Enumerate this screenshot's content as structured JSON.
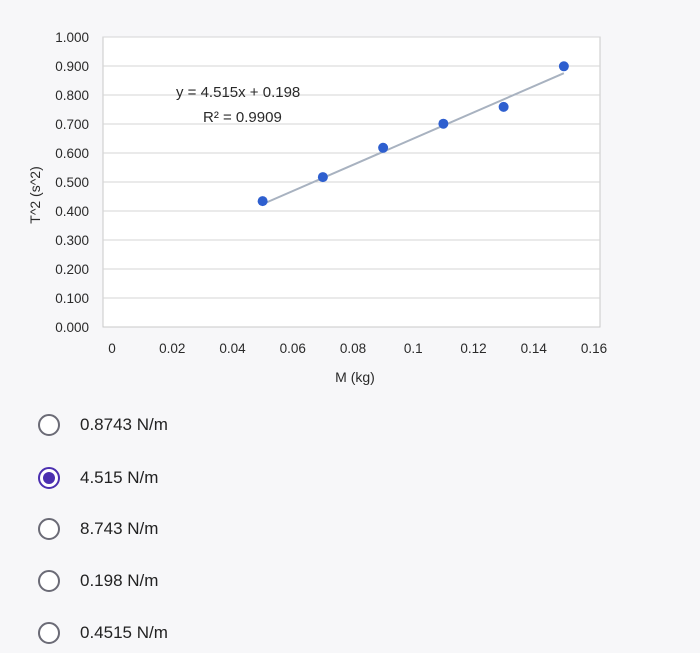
{
  "chart_data": {
    "type": "scatter",
    "xlabel": "M (kg)",
    "ylabel": "T^2 (s^2)",
    "xlim": [
      0,
      0.16
    ],
    "ylim": [
      0,
      1.0
    ],
    "x_ticks": [
      "0",
      "0.02",
      "0.04",
      "0.06",
      "0.08",
      "0.1",
      "0.12",
      "0.14",
      "0.16"
    ],
    "y_ticks": [
      "0.000",
      "0.100",
      "0.200",
      "0.300",
      "0.400",
      "0.500",
      "0.600",
      "0.700",
      "0.800",
      "0.900",
      "1.000"
    ],
    "grid": true,
    "series": [
      {
        "x": [
          0.05,
          0.07,
          0.09,
          0.11,
          0.13,
          0.15
        ],
        "y": [
          0.434,
          0.517,
          0.618,
          0.701,
          0.759,
          0.899
        ],
        "color": "#2e5fcf"
      }
    ],
    "trendline": {
      "slope": 4.515,
      "intercept": 0.198,
      "x_range": [
        0.05,
        0.15
      ],
      "color": "#a8b2c0",
      "equation": "y = 4.515x + 0.198",
      "r_squared": "R² = 0.9909"
    }
  },
  "question": {
    "options": [
      {
        "label": "0.8743 N/m",
        "selected": false
      },
      {
        "label": "4.515 N/m",
        "selected": true
      },
      {
        "label": "8.743 N/m",
        "selected": false
      },
      {
        "label": "0.198 N/m",
        "selected": false
      },
      {
        "label": "0.4515 N/m",
        "selected": false
      }
    ]
  }
}
